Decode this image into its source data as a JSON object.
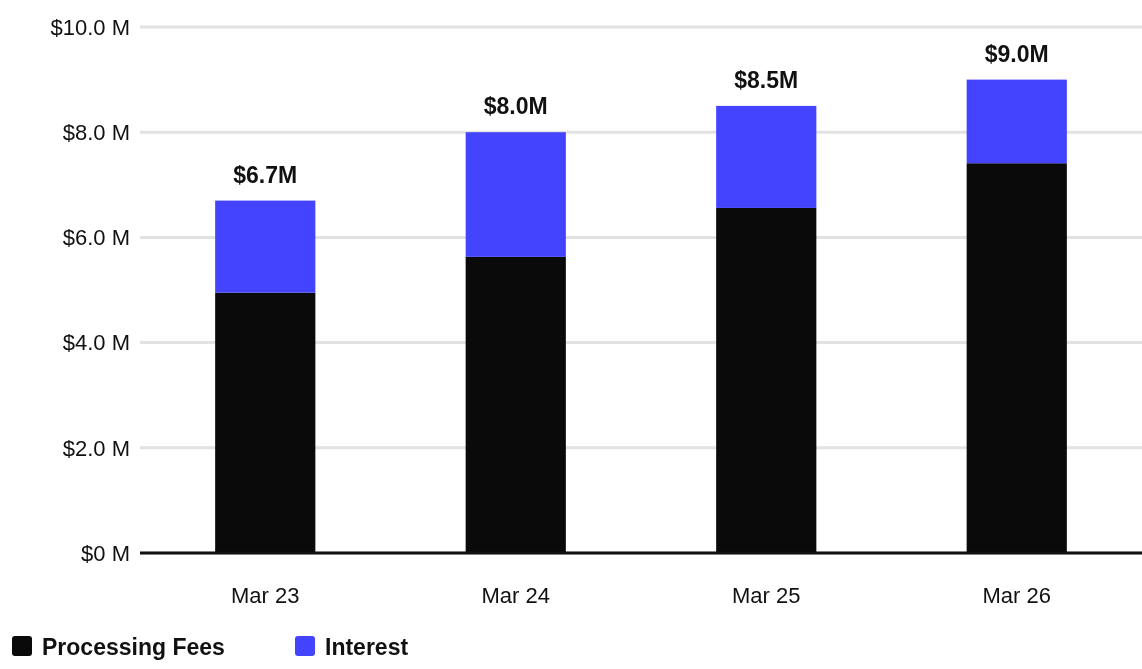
{
  "chart_data": {
    "type": "bar",
    "stacked": true,
    "categories": [
      "Mar 23",
      "Mar 24",
      "Mar 25",
      "Mar 26"
    ],
    "series": [
      {
        "name": "Processing Fees",
        "color": "#0a0a0a",
        "values": [
          4.95,
          5.63,
          6.56,
          7.41
        ]
      },
      {
        "name": "Interest",
        "color": "#4444ff",
        "values": [
          1.75,
          2.37,
          1.94,
          1.59
        ]
      }
    ],
    "ylim": [
      0,
      10
    ],
    "yticks": [
      {
        "value": 0,
        "label": "$0 M"
      },
      {
        "value": 2,
        "label": "$2.0 M"
      },
      {
        "value": 4,
        "label": "$4.0 M"
      },
      {
        "value": 6,
        "label": "$6.0 M"
      },
      {
        "value": 8,
        "label": "$8.0 M"
      },
      {
        "value": 10,
        "label": "$10.0 M"
      }
    ],
    "totals": [
      "$6.7M",
      "$8.0M",
      "$8.5M",
      "$9.0M"
    ],
    "grid": "y",
    "legend": "bottom left"
  }
}
